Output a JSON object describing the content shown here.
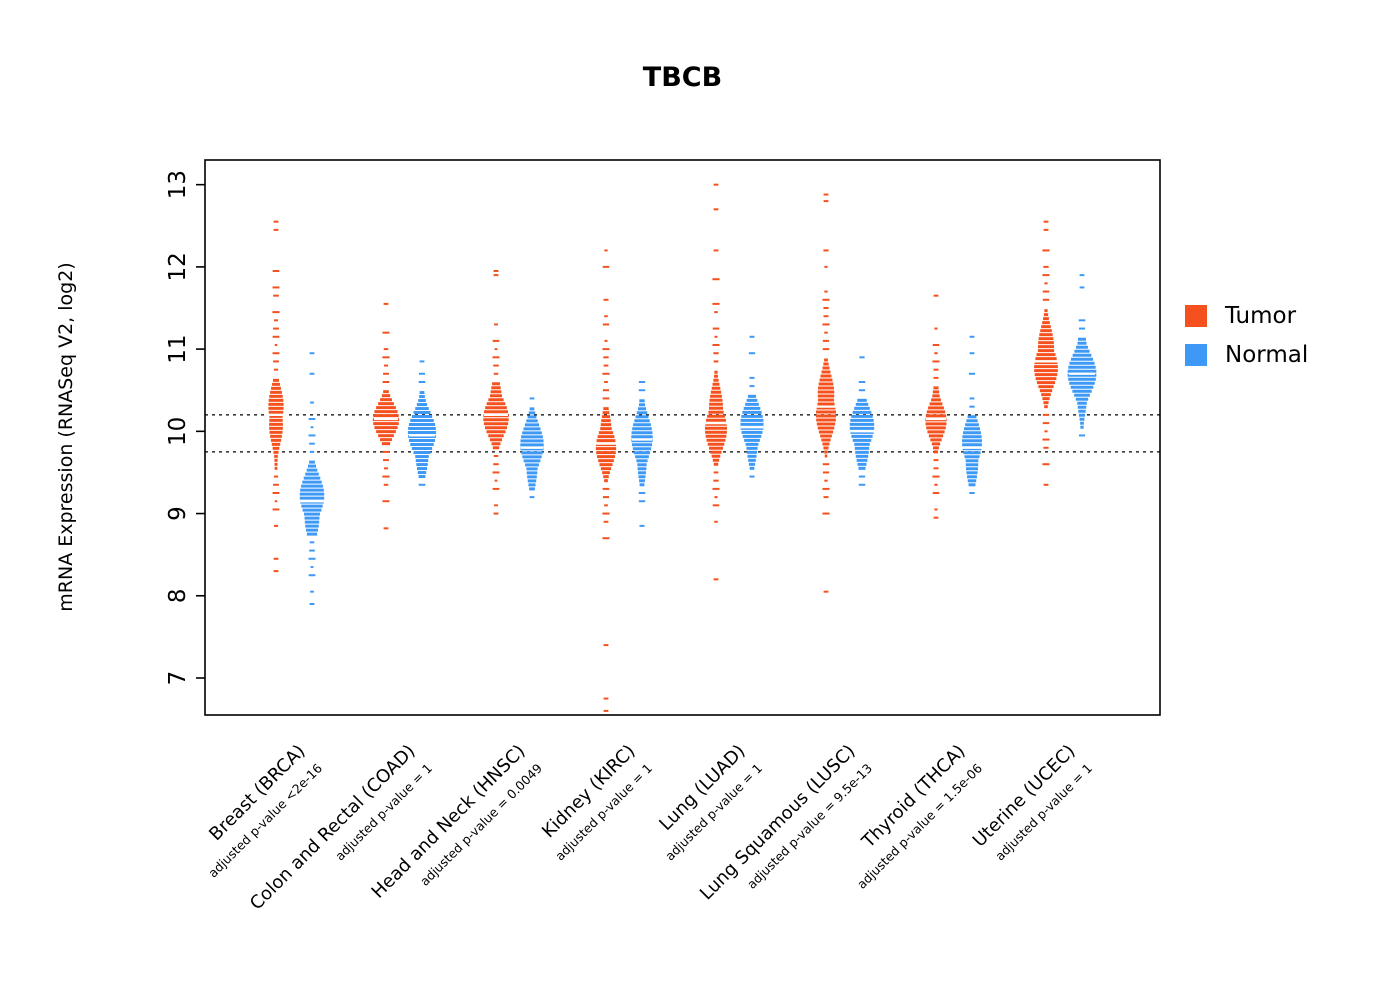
{
  "title": "TBCB",
  "chart_data": {
    "type": "violin",
    "title": "TBCB",
    "ylabel": "mRNA Expression (RNASeq V2, log2)",
    "ylim": [
      6.55,
      13.3
    ],
    "yticks": [
      7,
      8,
      9,
      10,
      11,
      12,
      13
    ],
    "reference_lines": [
      10.2,
      9.75
    ],
    "grid": false,
    "legend_position": "right",
    "legend": [
      {
        "label": "Tumor",
        "color": "#F4511E"
      },
      {
        "label": "Normal",
        "color": "#3D99F5"
      }
    ],
    "groups": [
      {
        "label": "Breast (BRCA)",
        "pvalue": "adjusted p-value <2e-16",
        "tumor": {
          "median": 10.2,
          "sd": 0.28,
          "maxwidth": 8,
          "body": [
            9.55,
            10.65
          ],
          "tail": [
            8.85,
            12.3
          ],
          "outliers": [
            8.3,
            8.45,
            12.45,
            12.55
          ]
        },
        "normal": {
          "median": 9.15,
          "sd": 0.3,
          "maxwidth": 11,
          "body": [
            8.75,
            9.65
          ],
          "tail": [
            7.95,
            10.45
          ],
          "outliers": [
            7.9,
            10.7,
            10.95
          ]
        }
      },
      {
        "label": "Colon and Rectal (COAD)",
        "pvalue": "adjusted p-value = 1",
        "tumor": {
          "median": 10.15,
          "sd": 0.22,
          "maxwidth": 11,
          "body": [
            9.85,
            10.5
          ],
          "tail": [
            8.9,
            11.5
          ],
          "outliers": [
            8.82,
            11.55
          ]
        },
        "normal": {
          "median": 9.95,
          "sd": 0.3,
          "maxwidth": 12,
          "body": [
            9.45,
            10.5
          ],
          "tail": [
            9.25,
            10.8
          ],
          "outliers": [
            10.85
          ]
        }
      },
      {
        "label": "Head and Neck (HNSC)",
        "pvalue": "adjusted p-value = 0.0049",
        "tumor": {
          "median": 10.2,
          "sd": 0.26,
          "maxwidth": 11,
          "body": [
            9.8,
            10.6
          ],
          "tail": [
            9.05,
            11.5
          ],
          "outliers": [
            9.0,
            11.9,
            11.95
          ]
        },
        "normal": {
          "median": 9.8,
          "sd": 0.3,
          "maxwidth": 10,
          "body": [
            9.3,
            10.3
          ],
          "tail": [
            9.05,
            10.6
          ],
          "outliers": []
        }
      },
      {
        "label": "Kidney (KIRC)",
        "pvalue": "adjusted p-value = 1",
        "tumor": {
          "median": 9.85,
          "sd": 0.26,
          "maxwidth": 9,
          "body": [
            9.4,
            10.3
          ],
          "tail": [
            8.5,
            12.25
          ],
          "outliers": [
            7.4,
            6.75,
            6.6
          ]
        },
        "normal": {
          "median": 9.9,
          "sd": 0.32,
          "maxwidth": 9,
          "body": [
            9.35,
            10.4
          ],
          "tail": [
            8.8,
            10.75
          ],
          "outliers": []
        }
      },
      {
        "label": "Lung (LUAD)",
        "pvalue": "adjusted p-value = 1",
        "tumor": {
          "median": 10.1,
          "sd": 0.3,
          "maxwidth": 10,
          "body": [
            9.6,
            10.75
          ],
          "tail": [
            8.7,
            12.0
          ],
          "outliers": [
            8.2,
            12.2,
            12.7,
            13.0
          ]
        },
        "normal": {
          "median": 10.05,
          "sd": 0.28,
          "maxwidth": 10,
          "body": [
            9.55,
            10.45
          ],
          "tail": [
            9.3,
            11.0
          ],
          "outliers": [
            11.15
          ]
        }
      },
      {
        "label": "Lung Squamous (LUSC)",
        "pvalue": "adjusted p-value = 9.5e-13",
        "tumor": {
          "median": 10.3,
          "sd": 0.3,
          "maxwidth": 10,
          "body": [
            9.7,
            10.9
          ],
          "tail": [
            8.75,
            12.35
          ],
          "outliers": [
            8.05,
            12.8,
            12.88
          ]
        },
        "normal": {
          "median": 10.0,
          "sd": 0.28,
          "maxwidth": 11,
          "body": [
            9.55,
            10.4
          ],
          "tail": [
            9.2,
            10.9
          ],
          "outliers": []
        }
      },
      {
        "label": "Thyroid (THCA)",
        "pvalue": "adjusted p-value = 1.5e-06",
        "tumor": {
          "median": 10.15,
          "sd": 0.24,
          "maxwidth": 9,
          "body": [
            9.75,
            10.55
          ],
          "tail": [
            9.0,
            11.4
          ],
          "outliers": [
            8.95,
            11.65
          ]
        },
        "normal": {
          "median": 9.8,
          "sd": 0.3,
          "maxwidth": 9,
          "body": [
            9.35,
            10.2
          ],
          "tail": [
            9.05,
            10.75
          ],
          "outliers": [
            10.95,
            11.15
          ]
        }
      },
      {
        "label": "Uterine (UCEC)",
        "pvalue": "adjusted p-value = 1",
        "tumor": {
          "median": 10.85,
          "sd": 0.3,
          "maxwidth": 11,
          "body": [
            10.3,
            11.5
          ],
          "tail": [
            9.6,
            12.3
          ],
          "outliers": [
            9.35,
            12.45,
            12.55
          ]
        },
        "normal": {
          "median": 10.7,
          "sd": 0.3,
          "maxwidth": 12,
          "body": [
            10.05,
            11.15
          ],
          "tail": [
            9.9,
            11.55
          ],
          "outliers": [
            11.75,
            11.9
          ]
        }
      }
    ]
  }
}
